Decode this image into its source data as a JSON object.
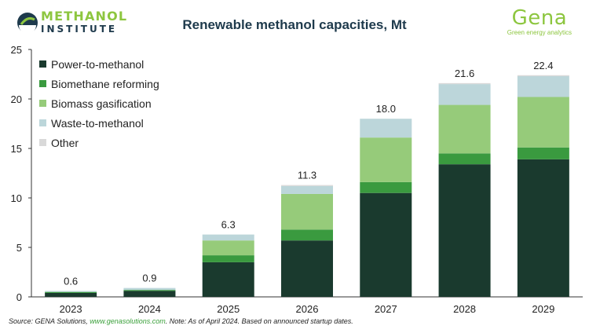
{
  "header": {
    "logo_line1": "METHANOL",
    "logo_line2": "INSTITUTE",
    "title": "Renewable methanol capacities, Mt",
    "brand_name": "Gena",
    "brand_tagline": "Green energy analytics"
  },
  "footer": {
    "source_prefix": "Source: GENA Solutions, ",
    "source_link": "www.genasolutions.com",
    "source_note": ". Note: As of April 2024. Based on announced startup dates."
  },
  "colors": {
    "power_to_methanol": "#1a3a2e",
    "biomethane_reforming": "#3a9a3f",
    "biomass_gasification": "#96cb7a",
    "waste_to_methanol": "#bcd6da",
    "other": "#d9d9d9",
    "brand_green": "#8dc63f",
    "title_navy": "#1e3a4c"
  },
  "chart_data": {
    "type": "bar",
    "stacked": true,
    "title": "Renewable methanol capacities, Mt",
    "categories": [
      "2023",
      "2024",
      "2025",
      "2026",
      "2027",
      "2028",
      "2029"
    ],
    "series": [
      {
        "name": "Power-to-methanol",
        "color": "#1a3a2e",
        "values": [
          0.4,
          0.6,
          3.5,
          5.7,
          10.5,
          13.4,
          13.9
        ]
      },
      {
        "name": "Biomethane reforming",
        "color": "#3a9a3f",
        "values": [
          0.1,
          0.1,
          0.7,
          1.1,
          1.1,
          1.1,
          1.2
        ]
      },
      {
        "name": "Biomass gasification",
        "color": "#96cb7a",
        "values": [
          0.0,
          0.0,
          1.5,
          3.6,
          4.5,
          4.9,
          5.1
        ]
      },
      {
        "name": "Waste-to-methanol",
        "color": "#bcd6da",
        "values": [
          0.1,
          0.2,
          0.6,
          0.8,
          1.9,
          2.1,
          2.1
        ]
      },
      {
        "name": "Other",
        "color": "#d9d9d9",
        "values": [
          0.0,
          0.0,
          0.0,
          0.1,
          0.0,
          0.1,
          0.1
        ]
      }
    ],
    "totals": [
      "0.6",
      "0.9",
      "6.3",
      "11.3",
      "18.0",
      "21.6",
      "22.4"
    ],
    "ylim": [
      0,
      25
    ],
    "yticks": [
      "0",
      "5",
      "10",
      "15",
      "20",
      "25"
    ],
    "xlabel": "",
    "ylabel": "",
    "grid": false,
    "legend_position": "top-left"
  }
}
